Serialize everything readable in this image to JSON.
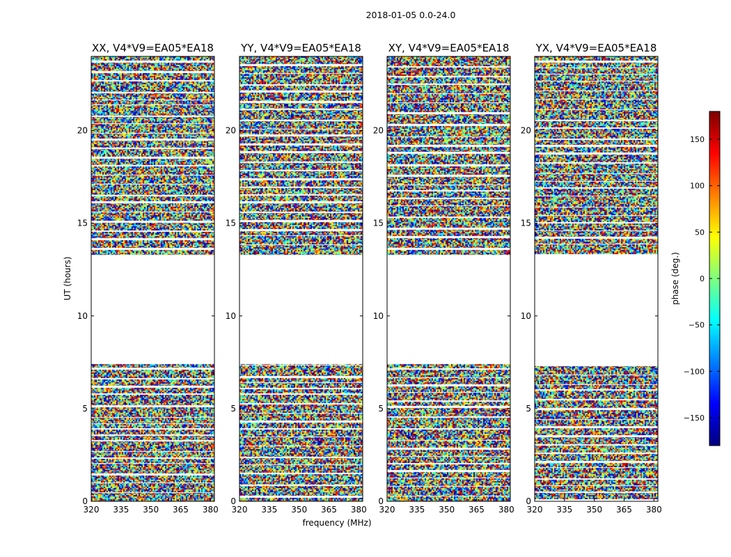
{
  "chart_data": {
    "type": "heatmap",
    "title": "2018-01-05 0.0-24.0",
    "xlabel": "frequency (MHz)",
    "ylabel": "UT (hours)",
    "xlim": [
      320,
      382
    ],
    "ylim": [
      0,
      24
    ],
    "xticks": [
      "320",
      "335",
      "350",
      "365",
      "380"
    ],
    "yticks": [
      "0",
      "5",
      "10",
      "15",
      "20"
    ],
    "colorbar": {
      "label": "phase (deg.)",
      "range": [
        -180,
        180
      ],
      "ticks": [
        "150",
        "100",
        "50",
        "0",
        "−50",
        "−100",
        "−150"
      ],
      "colormap": "jet"
    },
    "panels": [
      {
        "title": "XX, V4*V9=EA05*EA18"
      },
      {
        "title": "YY, V4*V9=EA05*EA18"
      },
      {
        "title": "XY, V4*V9=EA05*EA18"
      },
      {
        "title": "YX, V4*V9=EA05*EA18"
      }
    ],
    "flagged_ut_ranges": [
      [
        7.4,
        13.3
      ]
    ],
    "note": "Phase values appear as noise (random in −180..180 deg) with horizontal flagged (white) gaps."
  }
}
